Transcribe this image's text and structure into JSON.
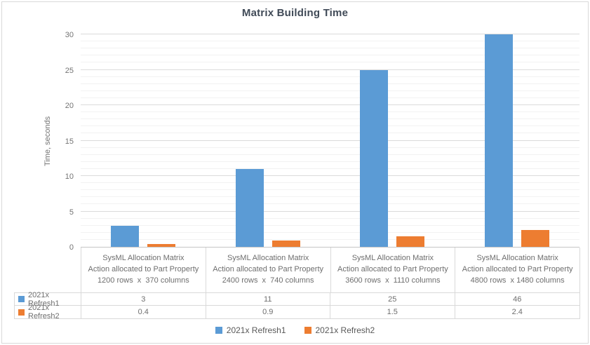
{
  "chart_data": {
    "type": "bar",
    "title": "Matrix Building Time",
    "xlabel": "",
    "ylabel": "Time, seconds",
    "ylim": [
      0,
      30
    ],
    "y_ticks": [
      0,
      5,
      10,
      15,
      20,
      25,
      30
    ],
    "y_major_step": 5,
    "y_minor_step": 1,
    "grid": true,
    "clip_bars_to_ylim": true,
    "legend_position": "bottom",
    "categories": [
      [
        "SysML Allocation Matrix",
        "Action allocated to Part Property",
        "1200 rows  x  370 columns"
      ],
      [
        "SysML Allocation Matrix",
        "Action allocated to Part Property",
        "2400 rows  x  740 columns"
      ],
      [
        "SysML Allocation Matrix",
        "Action allocated to Part Property",
        "3600 rows  x  1110 columns"
      ],
      [
        "SysML Allocation Matrix",
        "Action allocated to Part Property",
        "4800 rows  x 1480 columns"
      ]
    ],
    "series": [
      {
        "name": "2021x Refresh1",
        "color": "#5B9BD5",
        "values": [
          3,
          11,
          25,
          46
        ]
      },
      {
        "name": "2021x Refresh2",
        "color": "#ED7D31",
        "values": [
          0.4,
          0.9,
          1.5,
          2.4
        ]
      }
    ],
    "data_table_shown": true
  }
}
